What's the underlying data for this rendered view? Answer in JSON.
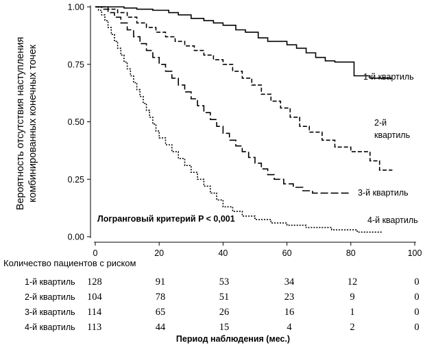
{
  "chart_data": {
    "type": "line",
    "subtype": "kaplan-meier",
    "title": "",
    "ylabel_lines": [
      "Вероятность отсутствия наступления",
      "комбинированных конечных точек"
    ],
    "xlabel": "Период наблюдения (мес.)",
    "xlim": [
      0,
      100
    ],
    "ylim": [
      0,
      1
    ],
    "x_ticks": [
      "0",
      "20",
      "40",
      "60",
      "80",
      "100"
    ],
    "y_ticks": [
      "0.00",
      "0.25",
      "0.50",
      "0.75",
      "1.00"
    ],
    "grid": false,
    "annotation": "Логранговый критерий P < 0,001",
    "series": [
      {
        "name": "1-й квартиль",
        "label_lines": [
          "1-й квартиль"
        ],
        "line_style": "solid",
        "points": [
          [
            0,
            1.0
          ],
          [
            9,
            1.0
          ],
          [
            9,
            0.995
          ],
          [
            13,
            0.995
          ],
          [
            13,
            0.99
          ],
          [
            18,
            0.99
          ],
          [
            18,
            0.985
          ],
          [
            23,
            0.985
          ],
          [
            23,
            0.975
          ],
          [
            26,
            0.975
          ],
          [
            26,
            0.965
          ],
          [
            30,
            0.965
          ],
          [
            30,
            0.95
          ],
          [
            34,
            0.95
          ],
          [
            34,
            0.94
          ],
          [
            37,
            0.94
          ],
          [
            37,
            0.93
          ],
          [
            40,
            0.93
          ],
          [
            40,
            0.92
          ],
          [
            44,
            0.92
          ],
          [
            44,
            0.9
          ],
          [
            47,
            0.9
          ],
          [
            47,
            0.89
          ],
          [
            51,
            0.89
          ],
          [
            51,
            0.865
          ],
          [
            54,
            0.865
          ],
          [
            54,
            0.85
          ],
          [
            60,
            0.85
          ],
          [
            60,
            0.835
          ],
          [
            63,
            0.835
          ],
          [
            63,
            0.82
          ],
          [
            66,
            0.82
          ],
          [
            66,
            0.8
          ],
          [
            69,
            0.8
          ],
          [
            69,
            0.78
          ],
          [
            72,
            0.78
          ],
          [
            72,
            0.765
          ],
          [
            75,
            0.765
          ],
          [
            75,
            0.76
          ],
          [
            81,
            0.76
          ],
          [
            81,
            0.7
          ],
          [
            86,
            0.7
          ],
          [
            86,
            0.69
          ],
          [
            93,
            0.69
          ]
        ]
      },
      {
        "name": "2-й квартиль",
        "label_lines": [
          "2-й",
          "квартиль"
        ],
        "line_style": "dashed",
        "points": [
          [
            0,
            1.0
          ],
          [
            4,
            1.0
          ],
          [
            4,
            0.99
          ],
          [
            7,
            0.99
          ],
          [
            7,
            0.975
          ],
          [
            10,
            0.975
          ],
          [
            10,
            0.955
          ],
          [
            13,
            0.955
          ],
          [
            13,
            0.93
          ],
          [
            16,
            0.93
          ],
          [
            16,
            0.91
          ],
          [
            19,
            0.91
          ],
          [
            19,
            0.89
          ],
          [
            22,
            0.89
          ],
          [
            22,
            0.87
          ],
          [
            25,
            0.87
          ],
          [
            25,
            0.85
          ],
          [
            28,
            0.85
          ],
          [
            28,
            0.83
          ],
          [
            31,
            0.83
          ],
          [
            31,
            0.81
          ],
          [
            34,
            0.81
          ],
          [
            34,
            0.79
          ],
          [
            37,
            0.79
          ],
          [
            37,
            0.77
          ],
          [
            40,
            0.77
          ],
          [
            40,
            0.75
          ],
          [
            43,
            0.75
          ],
          [
            43,
            0.72
          ],
          [
            46,
            0.72
          ],
          [
            46,
            0.69
          ],
          [
            49,
            0.69
          ],
          [
            49,
            0.66
          ],
          [
            52,
            0.66
          ],
          [
            52,
            0.62
          ],
          [
            55,
            0.62
          ],
          [
            55,
            0.59
          ],
          [
            58,
            0.59
          ],
          [
            58,
            0.56
          ],
          [
            61,
            0.56
          ],
          [
            61,
            0.52
          ],
          [
            64,
            0.52
          ],
          [
            64,
            0.48
          ],
          [
            67,
            0.48
          ],
          [
            67,
            0.455
          ],
          [
            71,
            0.455
          ],
          [
            71,
            0.42
          ],
          [
            75,
            0.42
          ],
          [
            75,
            0.39
          ],
          [
            80,
            0.39
          ],
          [
            80,
            0.37
          ],
          [
            86,
            0.37
          ],
          [
            86,
            0.33
          ],
          [
            89,
            0.33
          ],
          [
            89,
            0.29
          ],
          [
            93,
            0.29
          ]
        ]
      },
      {
        "name": "3-й квартиль",
        "label_lines": [
          "3-й квартиль"
        ],
        "line_style": "long-dash",
        "points": [
          [
            0,
            1.0
          ],
          [
            2,
            1.0
          ],
          [
            2,
            0.99
          ],
          [
            4,
            0.99
          ],
          [
            4,
            0.975
          ],
          [
            6,
            0.975
          ],
          [
            6,
            0.955
          ],
          [
            8,
            0.955
          ],
          [
            8,
            0.93
          ],
          [
            10,
            0.93
          ],
          [
            10,
            0.9
          ],
          [
            12,
            0.9
          ],
          [
            12,
            0.87
          ],
          [
            14,
            0.87
          ],
          [
            14,
            0.84
          ],
          [
            16,
            0.84
          ],
          [
            16,
            0.81
          ],
          [
            18,
            0.81
          ],
          [
            18,
            0.78
          ],
          [
            20,
            0.78
          ],
          [
            20,
            0.75
          ],
          [
            22,
            0.75
          ],
          [
            22,
            0.72
          ],
          [
            24,
            0.72
          ],
          [
            24,
            0.69
          ],
          [
            26,
            0.69
          ],
          [
            26,
            0.66
          ],
          [
            28,
            0.66
          ],
          [
            28,
            0.63
          ],
          [
            30,
            0.63
          ],
          [
            30,
            0.6
          ],
          [
            32,
            0.6
          ],
          [
            32,
            0.57
          ],
          [
            34,
            0.57
          ],
          [
            34,
            0.54
          ],
          [
            36,
            0.54
          ],
          [
            36,
            0.51
          ],
          [
            38,
            0.51
          ],
          [
            38,
            0.48
          ],
          [
            40,
            0.48
          ],
          [
            40,
            0.45
          ],
          [
            42,
            0.45
          ],
          [
            42,
            0.42
          ],
          [
            44,
            0.42
          ],
          [
            44,
            0.395
          ],
          [
            46,
            0.395
          ],
          [
            46,
            0.37
          ],
          [
            48,
            0.37
          ],
          [
            48,
            0.345
          ],
          [
            50,
            0.345
          ],
          [
            50,
            0.32
          ],
          [
            52,
            0.32
          ],
          [
            52,
            0.295
          ],
          [
            54,
            0.295
          ],
          [
            54,
            0.27
          ],
          [
            56,
            0.27
          ],
          [
            56,
            0.25
          ],
          [
            59,
            0.25
          ],
          [
            59,
            0.23
          ],
          [
            62,
            0.23
          ],
          [
            62,
            0.215
          ],
          [
            65,
            0.215
          ],
          [
            65,
            0.2
          ],
          [
            68,
            0.2
          ],
          [
            68,
            0.19
          ],
          [
            80,
            0.19
          ]
        ]
      },
      {
        "name": "4-й квартиль",
        "label_lines": [
          "4-й квартиль"
        ],
        "line_style": "dotted",
        "points": [
          [
            0,
            1.0
          ],
          [
            1,
            1.0
          ],
          [
            1,
            0.985
          ],
          [
            2,
            0.985
          ],
          [
            2,
            0.965
          ],
          [
            3,
            0.965
          ],
          [
            3,
            0.94
          ],
          [
            4,
            0.94
          ],
          [
            4,
            0.91
          ],
          [
            5,
            0.91
          ],
          [
            5,
            0.88
          ],
          [
            6,
            0.88
          ],
          [
            6,
            0.85
          ],
          [
            7,
            0.85
          ],
          [
            7,
            0.82
          ],
          [
            8,
            0.82
          ],
          [
            8,
            0.79
          ],
          [
            9,
            0.79
          ],
          [
            9,
            0.76
          ],
          [
            10,
            0.76
          ],
          [
            10,
            0.73
          ],
          [
            11,
            0.73
          ],
          [
            11,
            0.7
          ],
          [
            12,
            0.7
          ],
          [
            12,
            0.67
          ],
          [
            13,
            0.67
          ],
          [
            13,
            0.64
          ],
          [
            14,
            0.64
          ],
          [
            14,
            0.61
          ],
          [
            15,
            0.61
          ],
          [
            15,
            0.58
          ],
          [
            16,
            0.58
          ],
          [
            16,
            0.55
          ],
          [
            17,
            0.55
          ],
          [
            17,
            0.52
          ],
          [
            18,
            0.52
          ],
          [
            18,
            0.49
          ],
          [
            19,
            0.49
          ],
          [
            19,
            0.46
          ],
          [
            20,
            0.46
          ],
          [
            20,
            0.43
          ],
          [
            22,
            0.43
          ],
          [
            22,
            0.4
          ],
          [
            24,
            0.4
          ],
          [
            24,
            0.37
          ],
          [
            26,
            0.37
          ],
          [
            26,
            0.34
          ],
          [
            28,
            0.34
          ],
          [
            28,
            0.31
          ],
          [
            30,
            0.31
          ],
          [
            30,
            0.28
          ],
          [
            32,
            0.28
          ],
          [
            32,
            0.25
          ],
          [
            34,
            0.25
          ],
          [
            34,
            0.22
          ],
          [
            36,
            0.22
          ],
          [
            36,
            0.19
          ],
          [
            38,
            0.19
          ],
          [
            38,
            0.16
          ],
          [
            40,
            0.16
          ],
          [
            40,
            0.13
          ],
          [
            43,
            0.13
          ],
          [
            43,
            0.11
          ],
          [
            46,
            0.11
          ],
          [
            46,
            0.09
          ],
          [
            50,
            0.09
          ],
          [
            50,
            0.075
          ],
          [
            55,
            0.075
          ],
          [
            55,
            0.06
          ],
          [
            60,
            0.06
          ],
          [
            60,
            0.05
          ],
          [
            66,
            0.05
          ],
          [
            66,
            0.04
          ],
          [
            74,
            0.04
          ],
          [
            74,
            0.03
          ],
          [
            82,
            0.03
          ],
          [
            82,
            0.02
          ],
          [
            90,
            0.02
          ]
        ]
      }
    ],
    "risk_table": {
      "title": "Количество пациентов с риском",
      "rows": [
        {
          "label": "1-й квартиль",
          "values": [
            "128",
            "91",
            "53",
            "34",
            "12",
            "0"
          ]
        },
        {
          "label": "2-й квартиль",
          "values": [
            "104",
            "78",
            "51",
            "23",
            "9",
            "0"
          ]
        },
        {
          "label": "3-й квартиль",
          "values": [
            "114",
            "65",
            "26",
            "16",
            "1",
            "0"
          ]
        },
        {
          "label": "4-й квартиль",
          "values": [
            "113",
            "44",
            "15",
            "4",
            "2",
            "0"
          ]
        }
      ]
    }
  }
}
